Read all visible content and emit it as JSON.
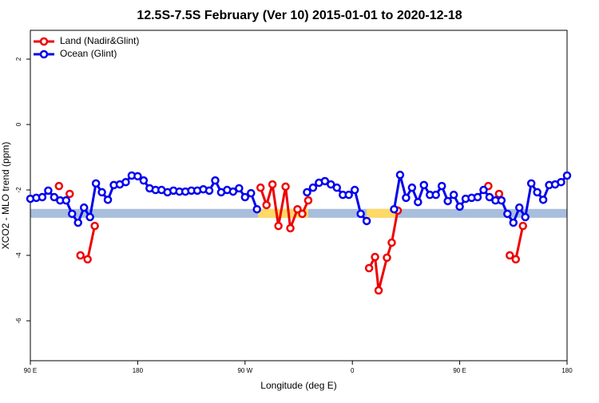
{
  "chart_data": {
    "type": "line",
    "title": "12.5S-7.5S February (Ver 10)   2015-01-01 to 2020-12-18",
    "xlabel": "Longitude (deg E)",
    "ylabel": "XCO2 - MLO trend (ppm)",
    "xlim": [
      90,
      540
    ],
    "xticks": [
      {
        "value": 90,
        "label": "90 E"
      },
      {
        "value": 180,
        "label": "180"
      },
      {
        "value": 270,
        "label": "90 W"
      },
      {
        "value": 360,
        "label": "0"
      },
      {
        "value": 450,
        "label": "90 E"
      },
      {
        "value": 540,
        "label": "180"
      }
    ],
    "ylim": [
      -7.22,
      2.88
    ],
    "yticks": [
      2,
      0,
      -2,
      -4,
      -6
    ],
    "legend": "top-left",
    "band": {
      "range": [
        -2.85,
        -2.58
      ],
      "color": "#a8bedc",
      "highlight_color": "#ffd966",
      "highlights": [
        [
          281,
          323
        ],
        [
          372,
          398
        ]
      ]
    },
    "series": [
      {
        "name": "Land (Nadir&Glint)",
        "color": "#ee0000",
        "x": [
          114,
          null,
          123,
          null,
          132,
          138,
          144,
          null,
          283,
          288,
          293,
          298,
          304,
          308,
          314,
          318,
          323,
          null,
          374,
          379,
          382,
          389,
          393,
          398,
          null,
          474,
          null,
          483,
          null,
          492,
          497,
          503
        ],
        "values": [
          -1.88,
          null,
          -2.12,
          null,
          -4.0,
          -4.12,
          -3.1,
          null,
          -1.93,
          -2.46,
          -1.83,
          -3.1,
          -1.9,
          -3.17,
          -2.59,
          -2.73,
          -2.32,
          null,
          -4.39,
          -4.05,
          -5.07,
          -4.07,
          -3.61,
          -2.63,
          null,
          -1.88,
          null,
          -2.12,
          null,
          -4.0,
          -4.12,
          -3.1
        ]
      },
      {
        "name": "Ocean (Glint)",
        "color": "#0000ee",
        "x": [
          90,
          95,
          100,
          105,
          110,
          115,
          120,
          125,
          130,
          135,
          140,
          145,
          150,
          155,
          160,
          165,
          170,
          175,
          180,
          185,
          190,
          195,
          200,
          205,
          210,
          215,
          220,
          225,
          230,
          235,
          240,
          245,
          250,
          255,
          260,
          265,
          270,
          275,
          280,
          null,
          322,
          327,
          332,
          337,
          342,
          347,
          352,
          357,
          362,
          367,
          372,
          null,
          395,
          400,
          405,
          410,
          415,
          420,
          425,
          430,
          435,
          440,
          445,
          450,
          455,
          460,
          465,
          470,
          475,
          480,
          485,
          490,
          495,
          500,
          505,
          510,
          515,
          520,
          525,
          530,
          535,
          540
        ],
        "values": [
          -2.27,
          -2.24,
          -2.22,
          -2.02,
          -2.22,
          -2.32,
          -2.32,
          -2.73,
          -3.0,
          -2.54,
          -2.83,
          -1.8,
          -2.07,
          -2.3,
          -1.85,
          -1.83,
          -1.76,
          -1.56,
          -1.58,
          -1.71,
          -1.95,
          -2.0,
          -2.0,
          -2.07,
          -2.02,
          -2.05,
          -2.05,
          -2.02,
          -2.02,
          -1.98,
          -2.02,
          -1.71,
          -2.07,
          -2.0,
          -2.05,
          -1.95,
          -2.22,
          -2.1,
          -2.59,
          null,
          -2.07,
          -1.93,
          -1.78,
          -1.73,
          -1.83,
          -1.93,
          -2.15,
          -2.15,
          -2.0,
          -2.73,
          -2.95,
          null,
          -2.59,
          -1.54,
          -2.24,
          -1.93,
          -2.37,
          -1.85,
          -2.15,
          -2.15,
          -1.88,
          -2.34,
          -2.15,
          -2.51,
          -2.27,
          -2.24,
          -2.22,
          -2.0,
          -2.22,
          -2.32,
          -2.32,
          -2.73,
          -3.0,
          -2.54,
          -2.83,
          -1.8,
          -2.07,
          -2.3,
          -1.85,
          -1.83,
          -1.76,
          -1.56
        ]
      }
    ]
  }
}
